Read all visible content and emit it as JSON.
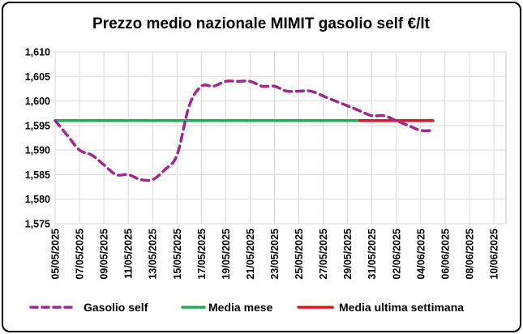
{
  "chart_data": {
    "type": "line",
    "title": "Prezzo medio nazionale MIMIT gasolio self €/lt",
    "xlabel": "",
    "ylabel": "",
    "ylim": [
      1.575,
      1.61
    ],
    "y_ticks": [
      "1,575",
      "1,580",
      "1,585",
      "1,590",
      "1,595",
      "1,600",
      "1,605",
      "1,610"
    ],
    "x_tick_labels": [
      "05/05/2025",
      "07/05/2025",
      "09/05/2025",
      "11/05/2025",
      "13/05/2025",
      "15/05/2025",
      "17/05/2025",
      "19/05/2025",
      "21/05/2025",
      "23/05/2025",
      "25/05/2025",
      "27/05/2025",
      "29/05/2025",
      "31/05/2025",
      "02/06/2025",
      "04/06/2025",
      "06/06/2025",
      "08/06/2025",
      "10/06/2025"
    ],
    "grid": true,
    "legend_position": "bottom",
    "series": [
      {
        "name": "Gasolio self",
        "style": "dashed",
        "color": "#a0288c",
        "dates": [
          "05/05/2025",
          "06/05/2025",
          "07/05/2025",
          "08/05/2025",
          "09/05/2025",
          "10/05/2025",
          "11/05/2025",
          "12/05/2025",
          "13/05/2025",
          "14/05/2025",
          "15/05/2025",
          "16/05/2025",
          "17/05/2025",
          "18/05/2025",
          "19/05/2025",
          "20/05/2025",
          "21/05/2025",
          "22/05/2025",
          "23/05/2025",
          "24/05/2025",
          "25/05/2025",
          "26/05/2025",
          "27/05/2025",
          "28/05/2025",
          "29/05/2025",
          "30/05/2025",
          "31/05/2025",
          "01/06/2025",
          "02/06/2025",
          "03/06/2025",
          "04/06/2025",
          "05/06/2025"
        ],
        "values": [
          1.596,
          1.593,
          1.59,
          1.589,
          1.587,
          1.585,
          1.585,
          1.584,
          1.584,
          1.586,
          1.589,
          1.599,
          1.603,
          1.603,
          1.604,
          1.604,
          1.604,
          1.603,
          1.603,
          1.602,
          1.602,
          1.602,
          1.601,
          1.6,
          1.599,
          1.598,
          1.597,
          1.597,
          1.596,
          1.595,
          1.594,
          1.594
        ]
      },
      {
        "name": "Media mese",
        "style": "solid",
        "color": "#1fac5a",
        "dates": [
          "05/05/2025",
          "30/05/2025"
        ],
        "values": [
          1.596,
          1.596
        ]
      },
      {
        "name": "Media ultima settimana",
        "style": "solid",
        "color": "#e0161e",
        "dates": [
          "30/05/2025",
          "05/06/2025"
        ],
        "values": [
          1.596,
          1.596
        ]
      }
    ]
  }
}
